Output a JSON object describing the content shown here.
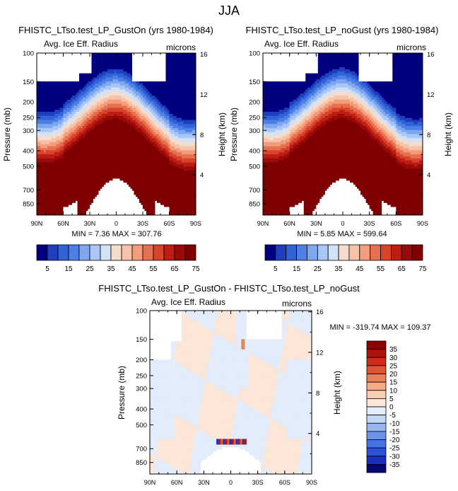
{
  "figure_title": "JJA",
  "colors": {
    "ice_palette": [
      "#00007f",
      "#1f3fbf",
      "#2f63d6",
      "#4d80e6",
      "#7da7ef",
      "#aac6f5",
      "#d2e2f8",
      "#f5dccb",
      "#f7c2a7",
      "#f39d7c",
      "#e8704f",
      "#d6442b",
      "#bf1d13",
      "#9a0a08",
      "#7e0000"
    ],
    "diff_palette": [
      "#050575",
      "#1b2fbd",
      "#2b52d8",
      "#4674e3",
      "#6b93eb",
      "#98b6f2",
      "#c3d7f6",
      "#e2ecfa",
      "#fce6d8",
      "#f8cdb2",
      "#f4ab86",
      "#ec8158",
      "#df5633",
      "#c9301a",
      "#ab1409",
      "#8b0000"
    ],
    "missing": "#ffffff"
  },
  "chart_data": [
    {
      "type": "contour",
      "id": "gust_on",
      "title": "FHISTC_LTso.test_LP_GustOn (yrs 1980-1984)",
      "left_label": "Avg. Ice Eff. Radius",
      "right_label": "microns",
      "ylabel": "Pressure (mb)",
      "ylabel_right": "Height (km)",
      "x_ticks": [
        "90N",
        "60N",
        "30N",
        "0",
        "30S",
        "60S",
        "90S"
      ],
      "y_ticks": [
        "100",
        "150",
        "200",
        "250",
        "300",
        "400",
        "500",
        "700",
        "850"
      ],
      "y_ticks_right": [
        "16",
        "12",
        "8",
        "4"
      ],
      "x_range": [
        "90N",
        "90S"
      ],
      "y_range_mb": [
        100,
        1000
      ],
      "min": 7.36,
      "max": 307.76,
      "min_max_text": "MIN =  7.36  MAX = 307.76",
      "colorbar_labels": [
        "5",
        "15",
        "25",
        "35",
        "45",
        "55",
        "65",
        "75"
      ],
      "colorbar_levels": [
        5,
        10,
        15,
        20,
        25,
        30,
        35,
        40,
        45,
        50,
        55,
        60,
        65,
        70,
        75
      ]
    },
    {
      "type": "contour",
      "id": "no_gust",
      "title": "FHISTC_LTso.test_LP_noGust (yrs 1980-1984)",
      "left_label": "Avg. Ice Eff. Radius",
      "right_label": "microns",
      "ylabel": "Pressure (mb)",
      "ylabel_right": "Height (km)",
      "x_ticks": [
        "90N",
        "60N",
        "30N",
        "0",
        "30S",
        "60S",
        "90S"
      ],
      "y_ticks": [
        "100",
        "150",
        "200",
        "250",
        "300",
        "400",
        "500",
        "700",
        "850"
      ],
      "y_ticks_right": [
        "16",
        "12",
        "8",
        "4"
      ],
      "x_range": [
        "90N",
        "90S"
      ],
      "y_range_mb": [
        100,
        1000
      ],
      "min": 5.85,
      "max": 599.64,
      "min_max_text": "MIN =  5.85  MAX = 599.64",
      "colorbar_labels": [
        "5",
        "15",
        "25",
        "35",
        "45",
        "55",
        "65",
        "75"
      ],
      "colorbar_levels": [
        5,
        10,
        15,
        20,
        25,
        30,
        35,
        40,
        45,
        50,
        55,
        60,
        65,
        70,
        75
      ]
    },
    {
      "type": "contour",
      "id": "difference",
      "title": "FHISTC_LTso.test_LP_GustOn - FHISTC_LTso.test_LP_noGust",
      "left_label": "Avg. Ice Eff. Radius",
      "right_label": "microns",
      "ylabel": "Pressure (mb)",
      "ylabel_right": "Height (km)",
      "x_ticks": [
        "90N",
        "60N",
        "30N",
        "0",
        "30S",
        "60S",
        "90S"
      ],
      "y_ticks": [
        "100",
        "150",
        "200",
        "250",
        "300",
        "400",
        "500",
        "700",
        "850"
      ],
      "y_ticks_right": [
        "16",
        "12",
        "8",
        "4"
      ],
      "x_range": [
        "90N",
        "90S"
      ],
      "y_range_mb": [
        100,
        1000
      ],
      "min": -319.74,
      "max": 109.37,
      "min_max_text": "MIN = -319.74  MAX = 109.37",
      "colorbar_labels": [
        "35",
        "30",
        "25",
        "20",
        "15",
        "10",
        "5",
        "0",
        "-5",
        "-10",
        "-15",
        "-20",
        "-25",
        "-30",
        "-35"
      ]
    }
  ]
}
